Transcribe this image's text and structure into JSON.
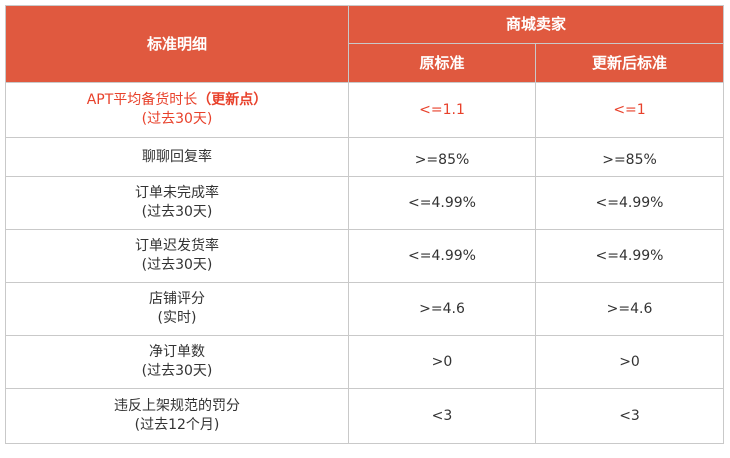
{
  "header": {
    "detail_label": "标准明细",
    "group_label": "商城卖家",
    "original_label": "原标准",
    "updated_label": "更新后标准"
  },
  "rows": [
    {
      "metric": "APT平均备货时长",
      "metric_note": "（更新点）",
      "period": "(过去30天)",
      "original": "<=1.1",
      "updated": "<=1"
    },
    {
      "metric": "聊聊回复率",
      "period": "",
      "original": ">=85%",
      "updated": ">=85%"
    },
    {
      "metric": "订单未完成率",
      "period": "(过去30天)",
      "original": "<=4.99%",
      "updated": "<=4.99%"
    },
    {
      "metric": "订单迟发货率",
      "period": "(过去30天)",
      "original": "<=4.99%",
      "updated": "<=4.99%"
    },
    {
      "metric": "店铺评分",
      "period": "(实时)",
      "original": ">=4.6",
      "updated": ">=4.6"
    },
    {
      "metric": "净订单数",
      "period": "(过去30天)",
      "original": ">0",
      "updated": ">0"
    },
    {
      "metric": "违反上架规范的罚分",
      "period": "(过去12个月)",
      "original": "<3",
      "updated": "<3"
    }
  ],
  "colors": {
    "header_bg": "#e0593f",
    "highlight_text": "#e8412b",
    "border": "#c9c9c9"
  }
}
